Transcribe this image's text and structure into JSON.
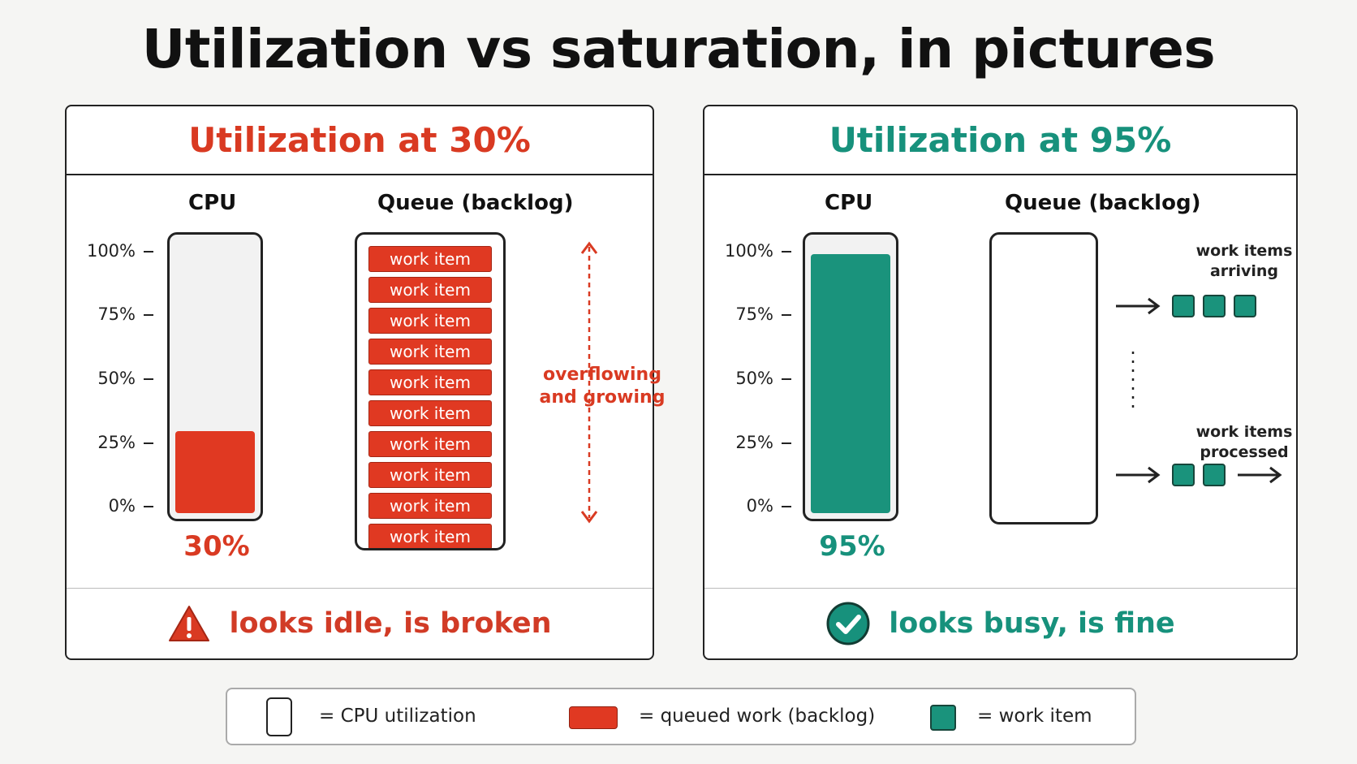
{
  "title": "Utilization vs saturation, in pictures",
  "left_panel": {
    "heading": "Utilization at 30%",
    "cpu_label": "CPU",
    "queue_label": "Queue (backlog)",
    "ticks": [
      "100%",
      "75%",
      "50%",
      "25%",
      "0%"
    ],
    "cpu_level": 0.3,
    "cpu_value": "30%",
    "queue_items": [
      "work item",
      "work item",
      "work item",
      "work item",
      "work item",
      "work item",
      "work item",
      "work item",
      "work item",
      "work item"
    ],
    "note_line1": "overflowing",
    "note_line2": "and growing",
    "footer": "looks idle, is broken"
  },
  "right_panel": {
    "heading": "Utilization at 95%",
    "cpu_label": "CPU",
    "queue_label": "Queue (backlog)",
    "ticks": [
      "100%",
      "75%",
      "50%",
      "25%",
      "0%"
    ],
    "cpu_level": 0.95,
    "cpu_value": "95%",
    "arriving_line1": "work items",
    "arriving_line2": "arriving",
    "processed_line1": "work items",
    "processed_line2": "processed",
    "footer": "looks busy, is fine"
  },
  "legend": {
    "cpu": "= CPU utilization",
    "queued": "= queued work (backlog)",
    "item": "= work item"
  },
  "colors": {
    "red": "#e03922",
    "teal": "#1a937c"
  }
}
